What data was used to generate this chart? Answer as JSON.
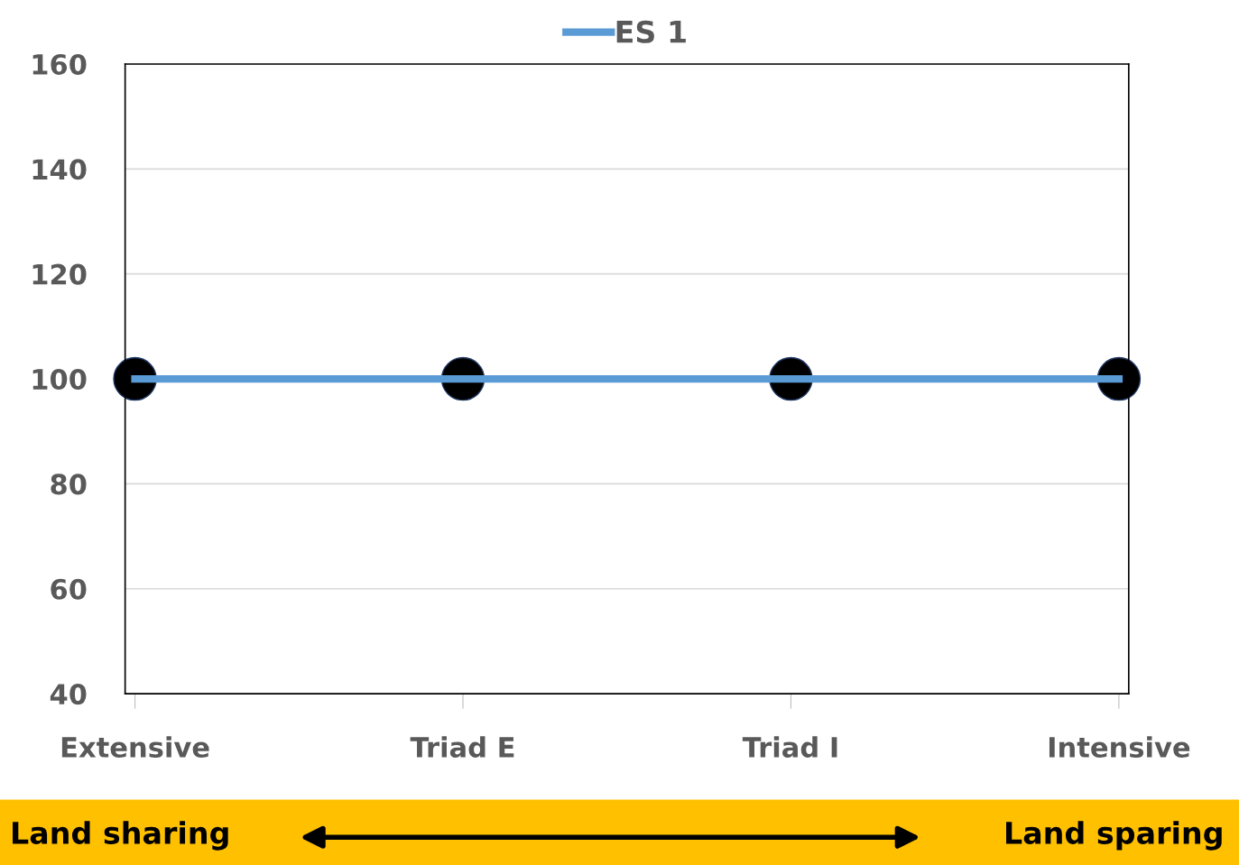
{
  "chart_data": {
    "type": "line",
    "categories": [
      "Extensive",
      "Triad E",
      "Triad I",
      "Intensive"
    ],
    "series": [
      {
        "name": "ES 1",
        "color": "#5b9bd5",
        "marker": "none",
        "values": [
          100,
          100,
          100,
          100
        ]
      },
      {
        "type": "scatter",
        "color": "#000000",
        "marker": "circle",
        "values": [
          100,
          100,
          100,
          100
        ]
      }
    ],
    "ylim": [
      40,
      160
    ],
    "yticks": [
      40,
      60,
      80,
      100,
      120,
      140,
      160
    ],
    "grid": "y",
    "legend": "top",
    "annotations": [
      "Land sharing",
      "Land sparing"
    ]
  }
}
